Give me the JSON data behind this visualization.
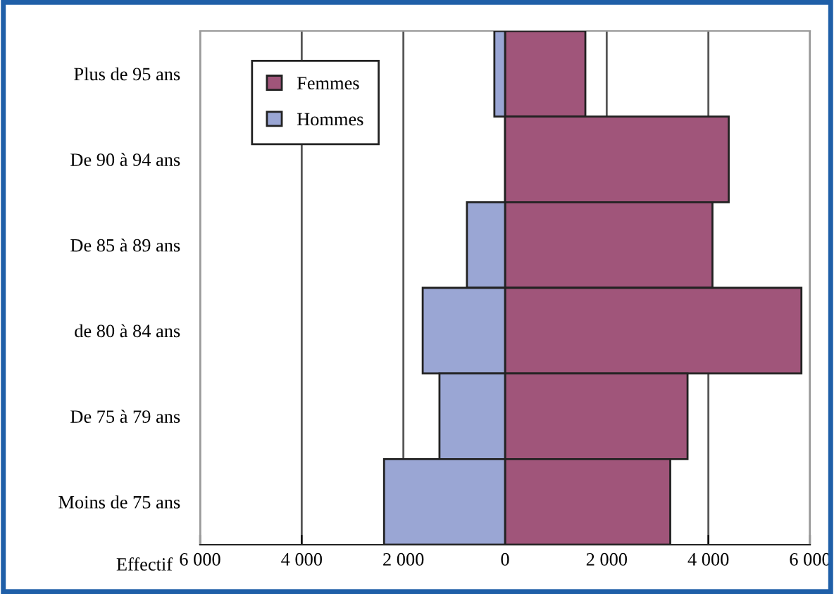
{
  "chart_data": {
    "type": "bar",
    "orientation": "horizontal",
    "xlabel": "Effectif",
    "categories": [
      "Plus de 95 ans",
      "De 90 à 94 ans",
      "De 85 à 89 ans",
      "de 80 à 84 ans",
      "De 75 à 79 ans",
      "Moins de 75 ans"
    ],
    "series": [
      {
        "name": "Femmes",
        "color": "#a0557a",
        "values": [
          1580,
          4400,
          4080,
          5830,
          3590,
          3250
        ]
      },
      {
        "name": "Hommes",
        "color": "#9aa6d4",
        "values": [
          -210,
          null,
          -750,
          -1620,
          -1290,
          -2380
        ]
      }
    ],
    "xlim": [
      -6000,
      6000
    ],
    "xticks": [
      {
        "value": -6000,
        "label": "6 000"
      },
      {
        "value": -4000,
        "label": "4 000"
      },
      {
        "value": -2000,
        "label": "2 000"
      },
      0,
      {
        "value": 2000,
        "label": "2 000"
      },
      {
        "value": 4000,
        "label": "4 000"
      },
      {
        "value": 6000,
        "label": "6 000"
      }
    ],
    "grid": "x",
    "legend": "top left",
    "stacked": true
  }
}
